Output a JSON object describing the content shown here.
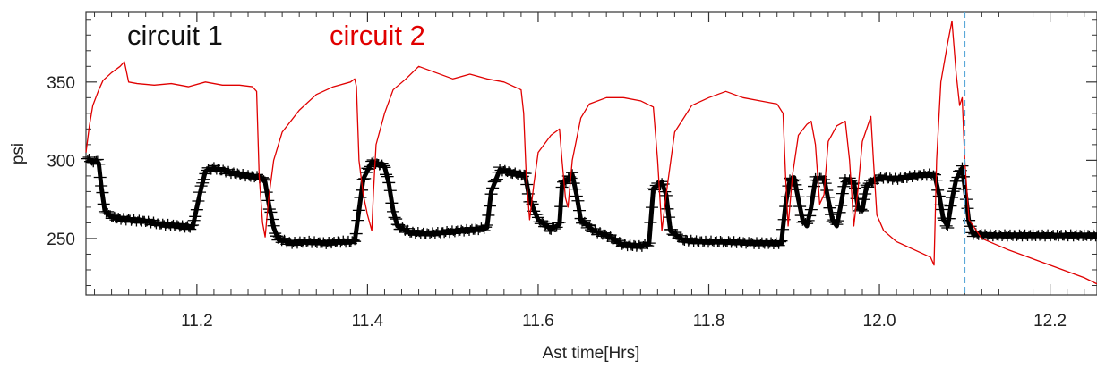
{
  "chart_data": {
    "type": "line",
    "title": "",
    "xlabel": "Ast time[Hrs]",
    "ylabel": "psi",
    "xlim": [
      11.07,
      12.255
    ],
    "ylim": [
      214,
      395
    ],
    "x_ticks": [
      11.2,
      11.4,
      11.6,
      11.8,
      12.0,
      12.2
    ],
    "x_tick_labels": [
      "11.2",
      "11.4",
      "11.6",
      "11.8",
      "12.0",
      "12.2"
    ],
    "y_ticks": [
      250,
      300,
      350
    ],
    "y_tick_labels": [
      "250",
      "300",
      "350"
    ],
    "grid": false,
    "legend_placement": "top-left",
    "reference_line": {
      "x": 12.1,
      "color": "#5aa8d8",
      "style": "dashed"
    },
    "series": [
      {
        "name": "circuit 1",
        "color": "#000000",
        "marker": "plus",
        "points": [
          [
            11.072,
            301
          ],
          [
            11.077,
            299
          ],
          [
            11.082,
            300
          ],
          [
            11.085,
            298
          ],
          [
            11.088,
            283
          ],
          [
            11.092,
            268
          ],
          [
            11.097,
            265
          ],
          [
            11.105,
            263
          ],
          [
            11.12,
            262
          ],
          [
            11.14,
            261
          ],
          [
            11.16,
            259
          ],
          [
            11.18,
            258
          ],
          [
            11.195,
            257
          ],
          [
            11.2,
            270
          ],
          [
            11.205,
            282
          ],
          [
            11.21,
            293
          ],
          [
            11.22,
            295
          ],
          [
            11.24,
            292
          ],
          [
            11.26,
            290
          ],
          [
            11.275,
            289
          ],
          [
            11.28,
            286
          ],
          [
            11.285,
            270
          ],
          [
            11.29,
            257
          ],
          [
            11.295,
            250
          ],
          [
            11.31,
            247
          ],
          [
            11.33,
            248
          ],
          [
            11.35,
            247
          ],
          [
            11.37,
            248
          ],
          [
            11.385,
            248
          ],
          [
            11.39,
            268
          ],
          [
            11.395,
            288
          ],
          [
            11.405,
            299
          ],
          [
            11.42,
            296
          ],
          [
            11.425,
            285
          ],
          [
            11.43,
            268
          ],
          [
            11.435,
            258
          ],
          [
            11.45,
            254
          ],
          [
            11.47,
            253
          ],
          [
            11.49,
            254
          ],
          [
            11.51,
            255
          ],
          [
            11.53,
            256
          ],
          [
            11.54,
            257
          ],
          [
            11.545,
            280
          ],
          [
            11.555,
            294
          ],
          [
            11.57,
            292
          ],
          [
            11.585,
            290
          ],
          [
            11.59,
            275
          ],
          [
            11.6,
            262
          ],
          [
            11.615,
            256
          ],
          [
            11.625,
            259
          ],
          [
            11.628,
            284
          ],
          [
            11.64,
            291
          ],
          [
            11.645,
            278
          ],
          [
            11.65,
            262
          ],
          [
            11.665,
            255
          ],
          [
            11.68,
            252
          ],
          [
            11.7,
            246
          ],
          [
            11.72,
            245
          ],
          [
            11.73,
            247
          ],
          [
            11.735,
            282
          ],
          [
            11.745,
            286
          ],
          [
            11.75,
            278
          ],
          [
            11.755,
            255
          ],
          [
            11.77,
            249
          ],
          [
            11.79,
            248
          ],
          [
            11.82,
            248
          ],
          [
            11.85,
            247
          ],
          [
            11.87,
            247
          ],
          [
            11.885,
            247
          ],
          [
            11.89,
            272
          ],
          [
            11.895,
            287
          ],
          [
            11.9,
            289
          ],
          [
            11.905,
            275
          ],
          [
            11.91,
            262
          ],
          [
            11.915,
            258
          ],
          [
            11.92,
            270
          ],
          [
            11.925,
            288
          ],
          [
            11.935,
            289
          ],
          [
            11.94,
            275
          ],
          [
            11.945,
            262
          ],
          [
            11.95,
            258
          ],
          [
            11.955,
            272
          ],
          [
            11.96,
            288
          ],
          [
            11.97,
            286
          ],
          [
            11.975,
            270
          ],
          [
            11.98,
            268
          ],
          [
            11.985,
            284
          ],
          [
            12.0,
            289
          ],
          [
            12.02,
            288
          ],
          [
            12.04,
            290
          ],
          [
            12.06,
            291
          ],
          [
            12.065,
            290
          ],
          [
            12.07,
            278
          ],
          [
            12.075,
            262
          ],
          [
            12.08,
            258
          ],
          [
            12.085,
            275
          ],
          [
            12.09,
            288
          ],
          [
            12.097,
            295
          ],
          [
            12.1,
            283
          ],
          [
            12.105,
            260
          ],
          [
            12.11,
            253
          ],
          [
            12.13,
            252
          ],
          [
            12.15,
            252
          ],
          [
            12.18,
            252
          ],
          [
            12.21,
            252
          ],
          [
            12.24,
            252
          ],
          [
            12.255,
            252
          ]
        ]
      },
      {
        "name": "circuit 2",
        "color": "#e00000",
        "marker": "none",
        "points": [
          [
            11.07,
            305
          ],
          [
            11.074,
            322
          ],
          [
            11.078,
            335
          ],
          [
            11.085,
            345
          ],
          [
            11.09,
            351
          ],
          [
            11.1,
            356
          ],
          [
            11.11,
            360
          ],
          [
            11.115,
            363
          ],
          [
            11.12,
            350
          ],
          [
            11.13,
            349
          ],
          [
            11.15,
            348
          ],
          [
            11.17,
            349
          ],
          [
            11.19,
            347
          ],
          [
            11.21,
            350
          ],
          [
            11.23,
            348
          ],
          [
            11.25,
            348
          ],
          [
            11.265,
            347
          ],
          [
            11.27,
            344
          ],
          [
            11.273,
            290
          ],
          [
            11.277,
            260
          ],
          [
            11.28,
            251
          ],
          [
            11.284,
            275
          ],
          [
            11.29,
            300
          ],
          [
            11.3,
            318
          ],
          [
            11.32,
            332
          ],
          [
            11.34,
            342
          ],
          [
            11.36,
            347
          ],
          [
            11.38,
            350
          ],
          [
            11.385,
            352
          ],
          [
            11.387,
            347
          ],
          [
            11.39,
            300
          ],
          [
            11.395,
            278
          ],
          [
            11.4,
            265
          ],
          [
            11.405,
            255
          ],
          [
            11.407,
            280
          ],
          [
            11.41,
            310
          ],
          [
            11.42,
            330
          ],
          [
            11.43,
            345
          ],
          [
            11.445,
            352
          ],
          [
            11.46,
            360
          ],
          [
            11.48,
            356
          ],
          [
            11.5,
            352
          ],
          [
            11.52,
            355
          ],
          [
            11.54,
            352
          ],
          [
            11.56,
            350
          ],
          [
            11.58,
            345
          ],
          [
            11.583,
            330
          ],
          [
            11.586,
            290
          ],
          [
            11.59,
            262
          ],
          [
            11.595,
            285
          ],
          [
            11.6,
            305
          ],
          [
            11.615,
            316
          ],
          [
            11.625,
            320
          ],
          [
            11.628,
            300
          ],
          [
            11.632,
            276
          ],
          [
            11.635,
            270
          ],
          [
            11.64,
            300
          ],
          [
            11.65,
            327
          ],
          [
            11.66,
            336
          ],
          [
            11.68,
            340
          ],
          [
            11.7,
            340
          ],
          [
            11.72,
            338
          ],
          [
            11.735,
            334
          ],
          [
            11.74,
            300
          ],
          [
            11.745,
            255
          ],
          [
            11.75,
            278
          ],
          [
            11.76,
            318
          ],
          [
            11.78,
            335
          ],
          [
            11.8,
            340
          ],
          [
            11.82,
            344
          ],
          [
            11.84,
            340
          ],
          [
            11.86,
            338
          ],
          [
            11.88,
            336
          ],
          [
            11.887,
            330
          ],
          [
            11.89,
            290
          ],
          [
            11.893,
            258
          ],
          [
            11.898,
            290
          ],
          [
            11.905,
            316
          ],
          [
            11.915,
            323
          ],
          [
            11.92,
            325
          ],
          [
            11.925,
            310
          ],
          [
            11.93,
            272
          ],
          [
            11.935,
            278
          ],
          [
            11.94,
            312
          ],
          [
            11.95,
            322
          ],
          [
            11.96,
            325
          ],
          [
            11.965,
            300
          ],
          [
            11.97,
            258
          ],
          [
            11.975,
            282
          ],
          [
            11.98,
            312
          ],
          [
            11.99,
            328
          ],
          [
            11.993,
            300
          ],
          [
            11.997,
            265
          ],
          [
            12.005,
            255
          ],
          [
            12.02,
            248
          ],
          [
            12.04,
            243
          ],
          [
            12.06,
            238
          ],
          [
            12.064,
            233
          ],
          [
            12.067,
            300
          ],
          [
            12.072,
            350
          ],
          [
            12.08,
            375
          ],
          [
            12.085,
            389
          ],
          [
            12.09,
            355
          ],
          [
            12.094,
            335
          ],
          [
            12.097,
            340
          ],
          [
            12.1,
            300
          ],
          [
            12.105,
            262
          ],
          [
            12.12,
            250
          ],
          [
            12.15,
            243
          ],
          [
            12.18,
            237
          ],
          [
            12.21,
            231
          ],
          [
            12.24,
            225
          ],
          [
            12.255,
            221
          ]
        ]
      }
    ]
  }
}
